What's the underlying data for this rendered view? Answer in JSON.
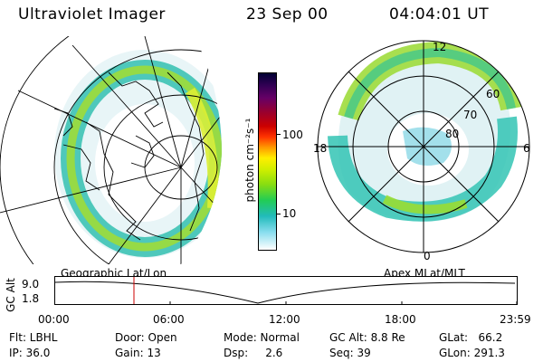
{
  "header": {
    "instrument": "Ultraviolet Imager",
    "date": "23 Sep 00",
    "time": "04:04:01 UT"
  },
  "colorbar": {
    "unit_label": "photon cm⁻²s⁻¹",
    "ticks": [
      "100",
      "10"
    ],
    "colors": [
      "#000033",
      "#330055",
      "#660066",
      "#99002e",
      "#cc0000",
      "#ff3300",
      "#ff9900",
      "#ffee00",
      "#ccee00",
      "#88dd11",
      "#22cc55",
      "#22bbbb",
      "#88ddee",
      "#ffffff"
    ]
  },
  "left_panel": {
    "title": "Geographic Lat/Lon"
  },
  "right_panel": {
    "title": "Apex MLat/MLT",
    "mlt_labels": {
      "top": "12",
      "left": "18",
      "right": "6",
      "bottom": "0"
    },
    "mlat_labels": [
      "60",
      "70",
      "80"
    ]
  },
  "timeline": {
    "axis_label": "GC Alt",
    "y_ticks": [
      "9.0",
      "1.8"
    ],
    "x_ticks": [
      "00:00",
      "06:00",
      "12:00",
      "18:00",
      "23:59"
    ],
    "marker_time": "04:04",
    "marker_color": "#cc0000"
  },
  "info": {
    "flt": "Flt: LBHL",
    "ip": "IP: 36.0",
    "door": "Door: Open",
    "gain": "Gain: 13",
    "mode": "Mode: Normal",
    "dsp": "Dsp:     2.6",
    "gc_alt": "GC Alt: 8.8 Re",
    "seq": "Seq: 39",
    "glat": "GLat:   66.2",
    "glon": "GLon: 291.3"
  }
}
